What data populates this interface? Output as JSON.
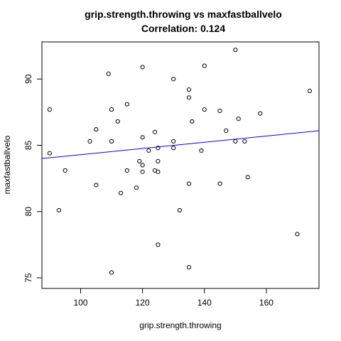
{
  "chart_data": {
    "type": "scatter",
    "title": "grip.strength.throwing vs maxfastballvelo",
    "subtitle": "Correlation: 0.124",
    "xlabel": "grip.strength.throwing",
    "ylabel": "maxfastballvelo",
    "xlim": [
      87.5,
      177
    ],
    "ylim": [
      74.2,
      92.8
    ],
    "x_ticks": [
      100,
      120,
      140,
      160
    ],
    "y_ticks": [
      75,
      80,
      85,
      90
    ],
    "grid": false,
    "regression_line": {
      "color": "#0000ff",
      "points": [
        [
          87.5,
          84.0
        ],
        [
          177,
          86.1
        ]
      ]
    },
    "x": [
      90,
      90,
      93,
      95,
      103,
      105,
      105,
      109,
      110,
      110,
      110,
      112,
      113,
      115,
      115,
      118,
      119,
      120,
      120,
      120,
      120,
      122,
      124,
      124,
      125,
      125,
      125,
      125,
      130,
      130,
      130,
      132,
      135,
      135,
      135,
      135,
      136,
      139,
      140,
      140,
      145,
      145,
      147,
      150,
      150,
      151,
      153,
      154,
      158,
      170,
      174
    ],
    "y": [
      87.7,
      84.4,
      80.1,
      83.1,
      85.3,
      86.2,
      82.0,
      90.4,
      87.7,
      85.3,
      75.4,
      86.8,
      81.4,
      88.1,
      83.1,
      81.8,
      83.8,
      90.9,
      85.6,
      83.5,
      83.0,
      84.6,
      86.0,
      83.1,
      84.8,
      83.8,
      83.0,
      77.5,
      90.0,
      85.3,
      84.8,
      80.1,
      89.2,
      88.6,
      82.1,
      75.8,
      86.8,
      84.6,
      91.0,
      87.7,
      87.6,
      82.1,
      86.1,
      92.2,
      85.3,
      87.0,
      85.3,
      82.6,
      87.4,
      78.3,
      89.1
    ]
  }
}
